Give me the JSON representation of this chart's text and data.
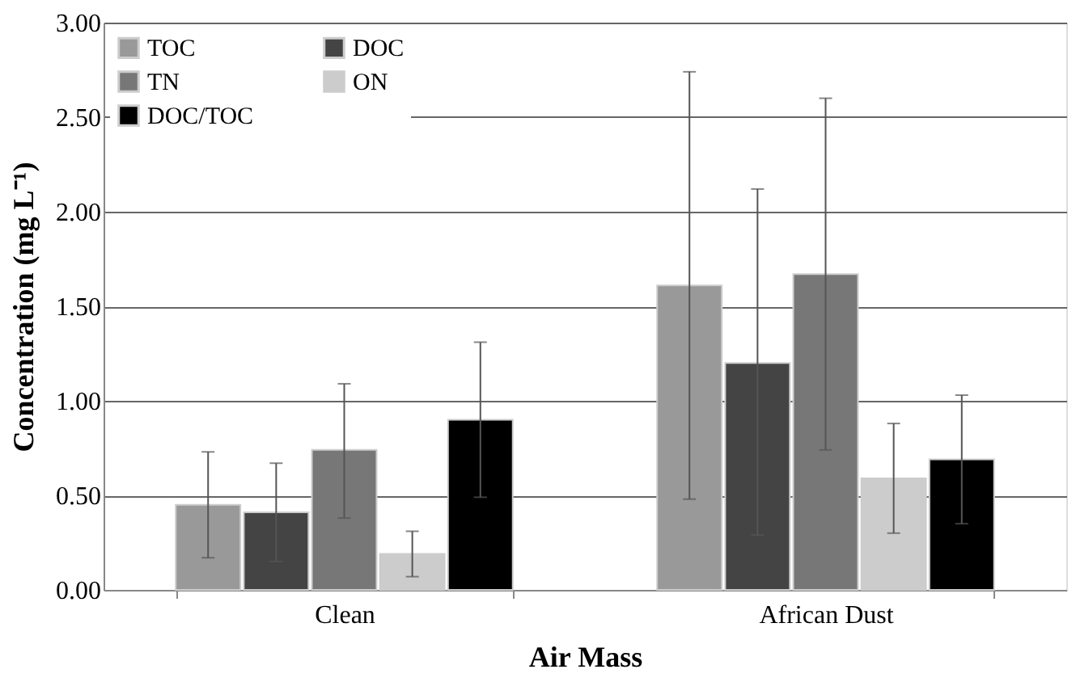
{
  "chart_data": {
    "type": "bar",
    "xlabel": "Air Mass",
    "ylabel": "Concentration (mg L⁻¹)",
    "categories": [
      "Clean",
      "African Dust"
    ],
    "ylim": [
      0,
      3
    ],
    "yticks": [
      {
        "value": 0,
        "label": "0.00"
      },
      {
        "value": 0.5,
        "label": "0.50"
      },
      {
        "value": 1,
        "label": "1.00"
      },
      {
        "value": 1.5,
        "label": "1.50"
      },
      {
        "value": 2,
        "label": "2.00"
      },
      {
        "value": 2.5,
        "label": "2.50"
      },
      {
        "value": 3,
        "label": "3.00"
      }
    ],
    "grid": "y",
    "legend": "top left",
    "series": [
      {
        "name": "TOC",
        "color": "#999999",
        "values": [
          0.45,
          1.61
        ],
        "errors": [
          [
            0.17,
            0.73
          ],
          [
            0.48,
            2.74
          ]
        ]
      },
      {
        "name": "DOC",
        "color": "#444444",
        "values": [
          0.41,
          1.2
        ],
        "errors": [
          [
            0.15,
            0.67
          ],
          [
            0.29,
            2.12
          ]
        ]
      },
      {
        "name": "TN",
        "color": "#777777",
        "values": [
          0.74,
          1.67
        ],
        "errors": [
          [
            0.38,
            1.09
          ],
          [
            0.74,
            2.6
          ]
        ]
      },
      {
        "name": "ON",
        "color": "#cccccc",
        "values": [
          0.19,
          0.59
        ],
        "errors": [
          [
            0.07,
            0.31
          ],
          [
            0.3,
            0.88
          ]
        ]
      },
      {
        "name": "DOC/TOC",
        "color": "#000000",
        "values": [
          0.9,
          0.69
        ],
        "errors": [
          [
            0.49,
            1.31
          ],
          [
            0.35,
            1.03
          ]
        ]
      }
    ]
  }
}
